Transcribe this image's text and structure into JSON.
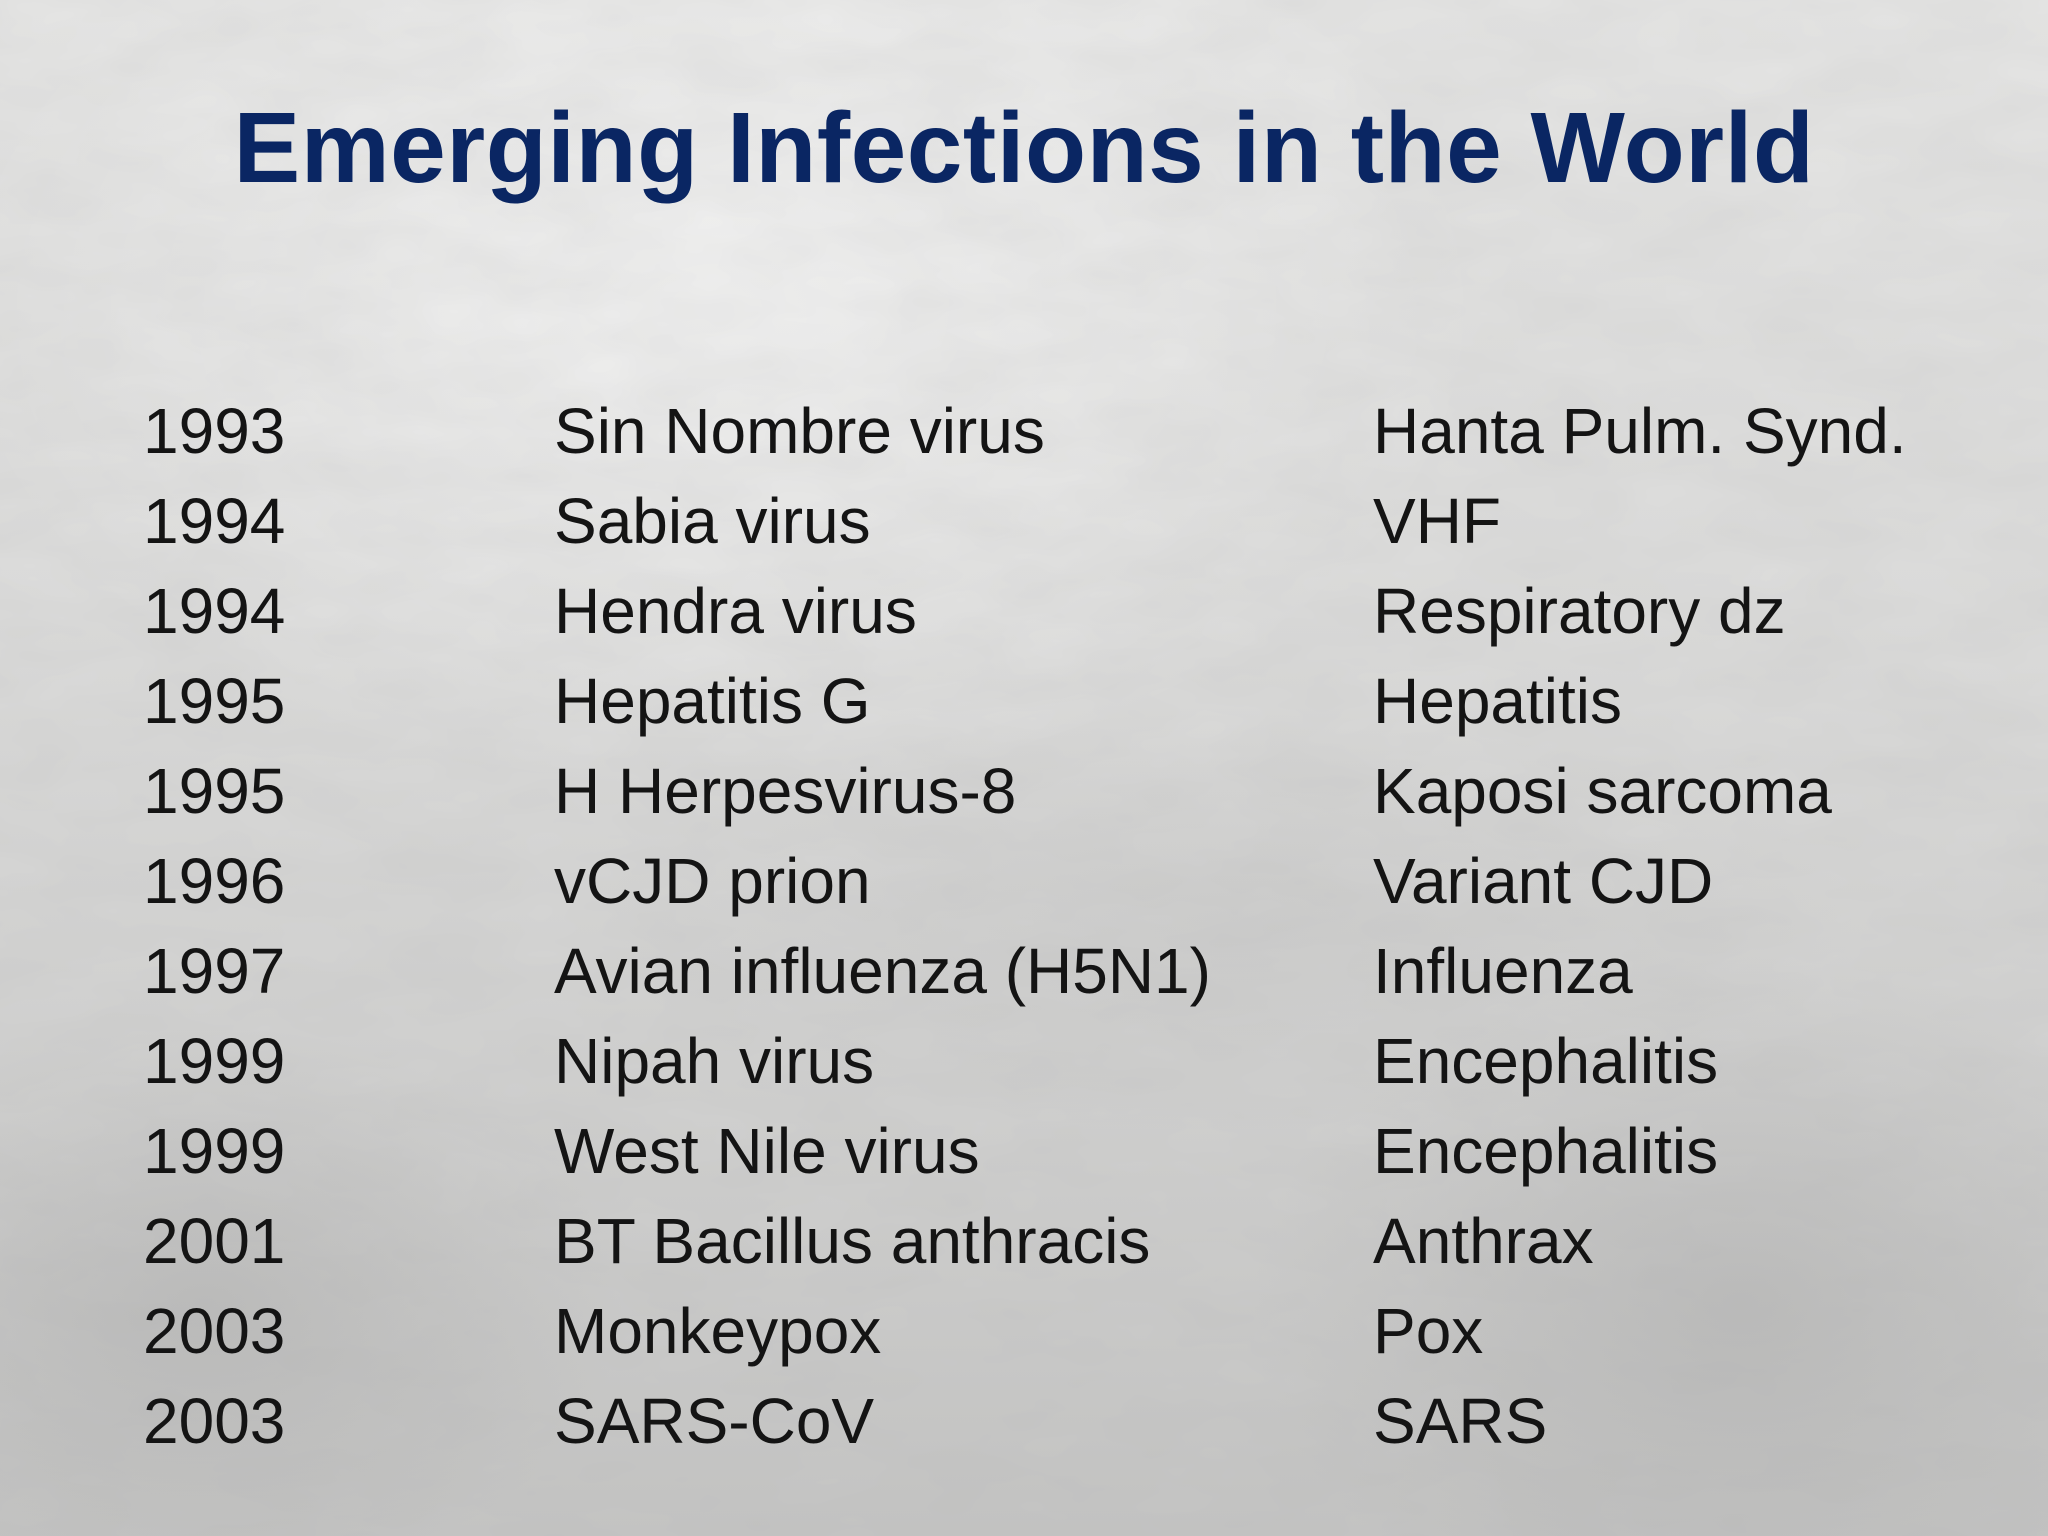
{
  "slide": {
    "title": "Emerging Infections in the World",
    "rows": [
      {
        "year": "1993",
        "agent": "Sin Nombre virus",
        "disease": "Hanta Pulm. Synd."
      },
      {
        "year": "1994",
        "agent": "Sabia virus",
        "disease": "VHF"
      },
      {
        "year": "1994",
        "agent": "Hendra virus",
        "disease": "Respiratory dz"
      },
      {
        "year": "1995",
        "agent": "Hepatitis G",
        "disease": "Hepatitis"
      },
      {
        "year": "1995",
        "agent": "H Herpesvirus-8",
        "disease": "Kaposi sarcoma"
      },
      {
        "year": "1996",
        "agent": "vCJD prion",
        "disease": "Variant CJD"
      },
      {
        "year": "1997",
        "agent": "Avian influenza (H5N1)",
        "disease": "Influenza"
      },
      {
        "year": "1999",
        "agent": "Nipah virus",
        "disease": "Encephalitis"
      },
      {
        "year": "1999",
        "agent": "West Nile virus",
        "disease": "Encephalitis"
      },
      {
        "year": "2001",
        "agent": "BT Bacillus anthracis",
        "disease": "Anthrax"
      },
      {
        "year": "2003",
        "agent": "Monkeypox",
        "disease": "Pox"
      },
      {
        "year": "2003",
        "agent": "SARS-CoV",
        "disease": "SARS"
      }
    ]
  },
  "colors": {
    "title": "#0a2663",
    "body_text": "#141414",
    "background": "#d8d8d7"
  }
}
